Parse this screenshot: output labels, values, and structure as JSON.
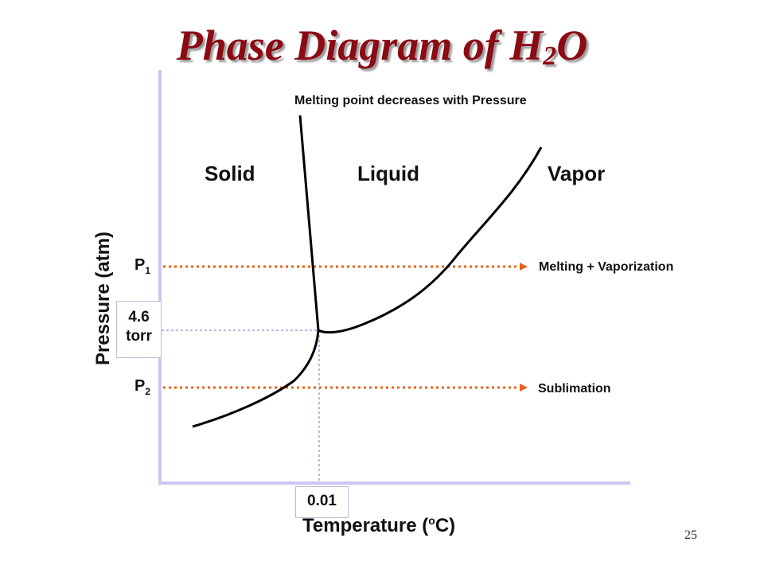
{
  "title": {
    "main": "Phase Diagram of H",
    "sub": "2",
    "end": "O"
  },
  "annotations": {
    "melting_note": "Melting point decreases with Pressure",
    "melting_vaporization": "Melting + Vaporization",
    "sublimation": "Sublimation"
  },
  "regions": {
    "solid": "Solid",
    "liquid": "Liquid",
    "vapor": "Vapor"
  },
  "pressure_lines": {
    "p1": {
      "letter": "P",
      "sub": "1"
    },
    "p2": {
      "letter": "P",
      "sub": "2"
    }
  },
  "triple_point": {
    "pressure_value": "4.6",
    "pressure_unit": "torr",
    "temperature": "0.01"
  },
  "axes": {
    "ylabel": "Pressure (atm)",
    "xlabel_main": "Temperature (",
    "xlabel_sup": "o",
    "xlabel_end": "C)"
  },
  "colors": {
    "title": "#8b0a14",
    "arrow": "#e8631a",
    "axis": "#c8c8f0",
    "guide": "#b8b8e8"
  },
  "page_number": "25"
}
